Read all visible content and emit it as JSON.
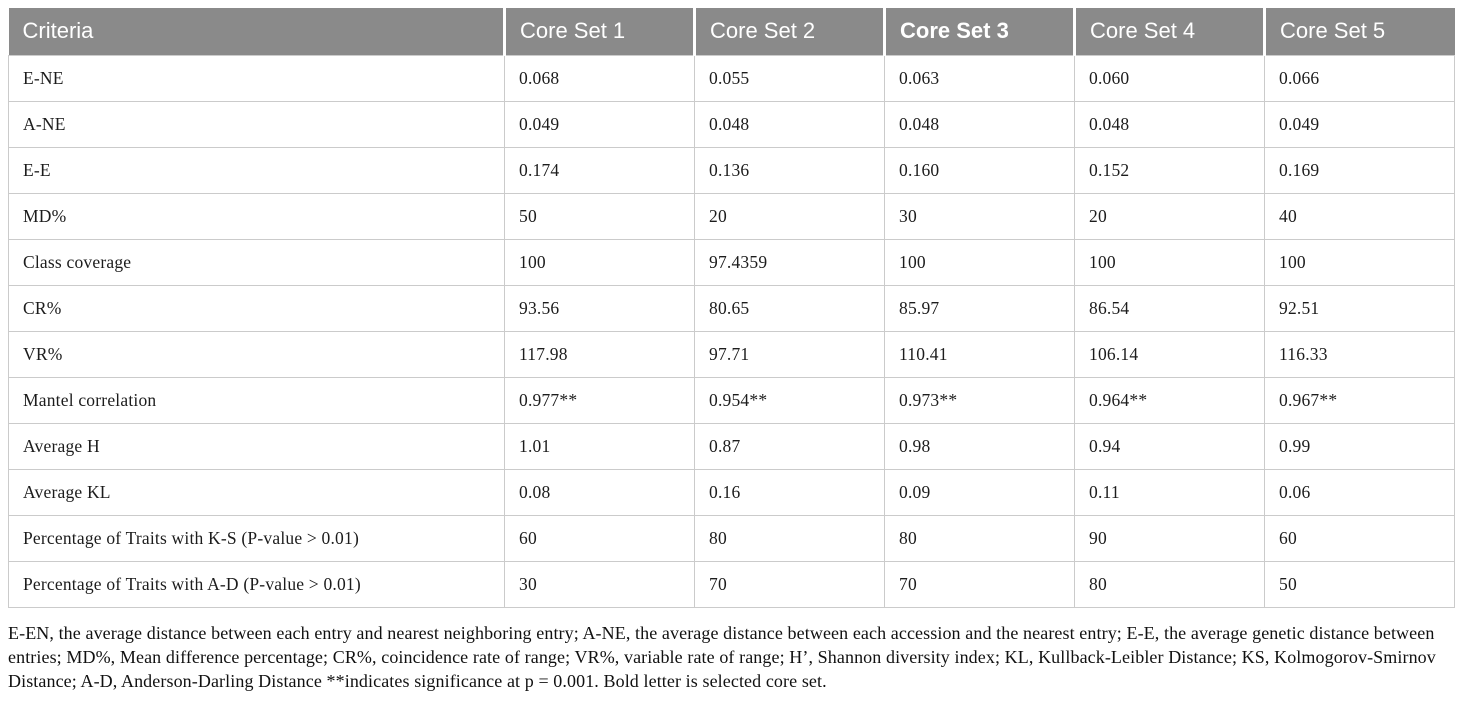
{
  "colors": {
    "header_bg": "#8a8a8a",
    "header_text": "#ffffff",
    "cell_border": "#cbcbcb",
    "body_text": "#1c1c1c"
  },
  "table": {
    "columns": [
      {
        "label": "Criteria"
      },
      {
        "label": "Core Set 1"
      },
      {
        "label": "Core Set 2"
      },
      {
        "label": "Core Set 3"
      },
      {
        "label": "Core Set 4"
      },
      {
        "label": "Core Set 5"
      }
    ],
    "emphasized_column": "Core Set 3",
    "rows": [
      {
        "criteria": "E-NE",
        "values": [
          "0.068",
          "0.055",
          "0.063",
          "0.060",
          "0.066"
        ]
      },
      {
        "criteria": "A-NE",
        "values": [
          "0.049",
          "0.048",
          "0.048",
          "0.048",
          "0.049"
        ]
      },
      {
        "criteria": "E-E",
        "values": [
          "0.174",
          "0.136",
          "0.160",
          "0.152",
          "0.169"
        ]
      },
      {
        "criteria": "MD%",
        "values": [
          "50",
          "20",
          "30",
          "20",
          "40"
        ]
      },
      {
        "criteria": "Class coverage",
        "values": [
          "100",
          "97.4359",
          "100",
          "100",
          "100"
        ]
      },
      {
        "criteria": "CR%",
        "values": [
          "93.56",
          "80.65",
          "85.97",
          "86.54",
          "92.51"
        ]
      },
      {
        "criteria": "VR%",
        "values": [
          "117.98",
          "97.71",
          "110.41",
          "106.14",
          "116.33"
        ]
      },
      {
        "criteria": "Mantel correlation",
        "values": [
          "0.977**",
          "0.954**",
          "0.973**",
          "0.964**",
          "0.967**"
        ]
      },
      {
        "criteria": "Average H",
        "values": [
          "1.01",
          "0.87",
          "0.98",
          "0.94",
          "0.99"
        ]
      },
      {
        "criteria": "Average KL",
        "values": [
          "0.08",
          "0.16",
          "0.09",
          "0.11",
          "0.06"
        ]
      },
      {
        "criteria": "Percentage of Traits with K-S (P-value > 0.01)",
        "values": [
          "60",
          "80",
          "80",
          "90",
          "60"
        ]
      },
      {
        "criteria": "Percentage of Traits with A-D (P-value > 0.01)",
        "values": [
          "30",
          "70",
          "70",
          "80",
          "50"
        ]
      }
    ]
  },
  "footnote": "E-EN, the average distance between each entry and nearest neighboring entry; A-NE, the average distance between each accession and the nearest entry; E-E, the average genetic distance between entries; MD%, Mean difference percentage; CR%, coincidence rate of range; VR%, variable rate of range; H’, Shannon diversity index; KL, Kullback-Leibler Distance; KS, Kolmogorov-Smirnov Distance; A-D, Anderson-Darling Distance **indicates significance at p = 0.001. Bold letter is selected core set."
}
